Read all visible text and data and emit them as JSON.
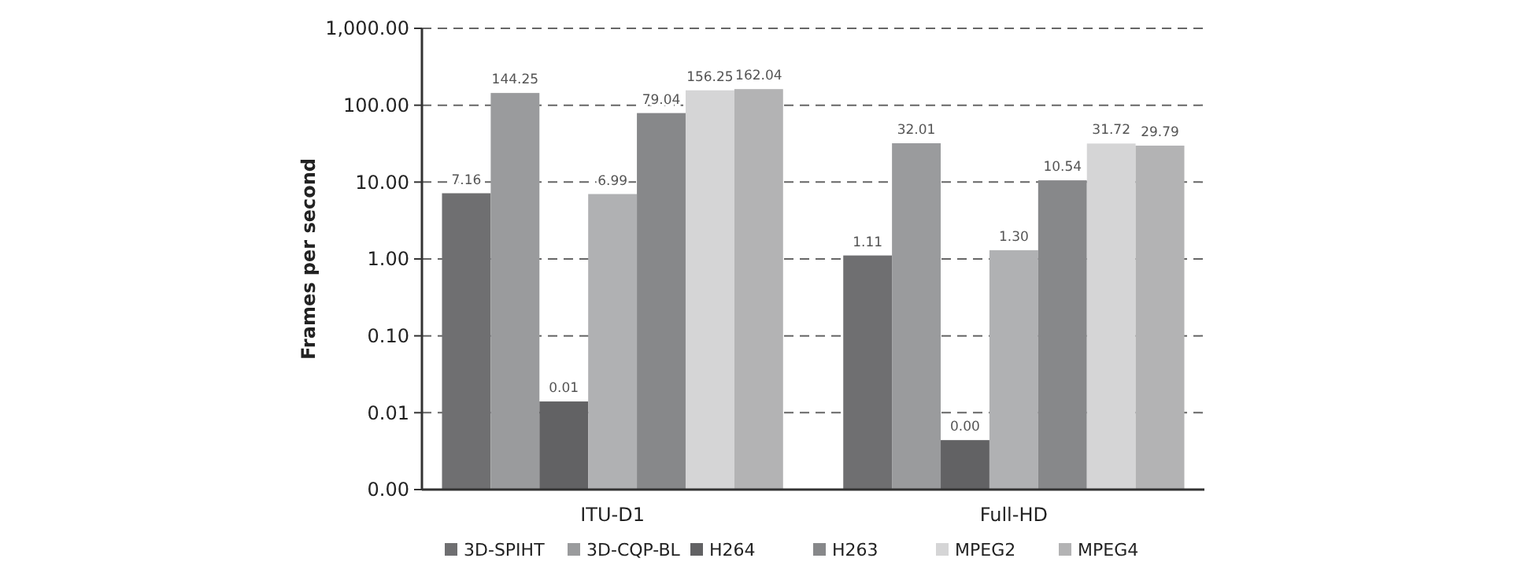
{
  "chart_data": {
    "type": "bar",
    "ylabel": "Frames per second",
    "categories": [
      "ITU-D1",
      "Full-HD"
    ],
    "log": true,
    "ylim": [
      0.001,
      1000
    ],
    "yticks": [
      {
        "value": 0.001,
        "label": "0.00"
      },
      {
        "value": 0.01,
        "label": "0.01"
      },
      {
        "value": 0.1,
        "label": "0.10"
      },
      {
        "value": 1,
        "label": "1.00"
      },
      {
        "value": 10,
        "label": "10.00"
      },
      {
        "value": 100,
        "label": "100.00"
      },
      {
        "value": 1000,
        "label": "1,000.00"
      }
    ],
    "grid": "y",
    "legend": "bottom",
    "series": [
      {
        "name": "3D-SPIHT",
        "color": "#6f6f71",
        "values": [
          7.16,
          1.11
        ],
        "value_labels": [
          "7.16",
          "1.11"
        ]
      },
      {
        "name": "3D-CQP-BL",
        "color": "#9a9b9d",
        "values": [
          144.25,
          32.01
        ],
        "value_labels": [
          "144.25",
          "32.01"
        ]
      },
      {
        "name": "H264",
        "color": "#626264",
        "values": [
          0.014,
          0.0044
        ],
        "value_labels": [
          "0.01",
          "0.00"
        ]
      },
      {
        "color": "#b0b1b3",
        "values": [
          6.99,
          1.3
        ],
        "value_labels": [
          "6.99",
          "1.30"
        ]
      },
      {
        "name": "H263",
        "color": "#87888a",
        "values": [
          79.04,
          10.54
        ],
        "value_labels": [
          "79.04",
          "10.54"
        ]
      },
      {
        "name": "MPEG2",
        "color": "#d5d5d6",
        "values": [
          156.25,
          31.72
        ],
        "value_labels": [
          "156.25",
          "31.72"
        ]
      },
      {
        "name": "MPEG4",
        "color": "#b3b3b4",
        "values": [
          162.04,
          29.79
        ],
        "value_labels": [
          "162.04",
          "29.79"
        ]
      }
    ]
  }
}
